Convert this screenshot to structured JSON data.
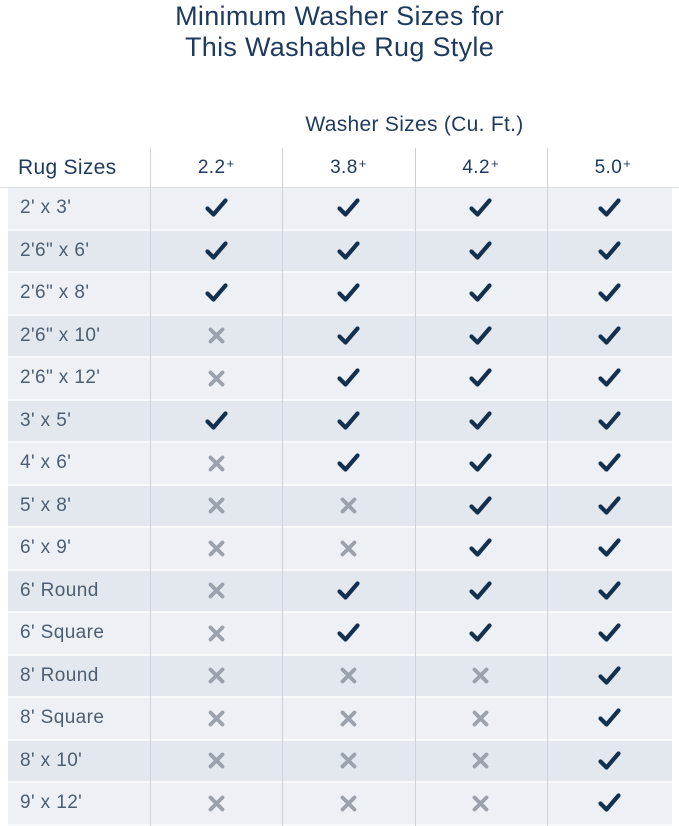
{
  "chart_data": {
    "type": "table",
    "title": "Minimum Washer Sizes for This Washable Rug Style",
    "title_lines": [
      "Minimum Washer Sizes for",
      "This Washable Rug Style"
    ],
    "column_group_label": "Washer Sizes (Cu. Ft.)",
    "row_header": "Rug Sizes",
    "columns": [
      "2.2+",
      "3.8+",
      "4.2+",
      "5.0+"
    ],
    "legend": {
      "check_means": "fits",
      "x_means": "does not fit"
    },
    "rows": [
      {
        "label": "2' x 3'",
        "fits": [
          true,
          true,
          true,
          true
        ]
      },
      {
        "label": "2'6\" x 6'",
        "fits": [
          true,
          true,
          true,
          true
        ]
      },
      {
        "label": "2'6\" x 8'",
        "fits": [
          true,
          true,
          true,
          true
        ]
      },
      {
        "label": "2'6\" x 10'",
        "fits": [
          false,
          true,
          true,
          true
        ]
      },
      {
        "label": "2'6\" x 12'",
        "fits": [
          false,
          true,
          true,
          true
        ]
      },
      {
        "label": "3' x 5'",
        "fits": [
          true,
          true,
          true,
          true
        ]
      },
      {
        "label": "4' x 6'",
        "fits": [
          false,
          true,
          true,
          true
        ]
      },
      {
        "label": "5' x 8'",
        "fits": [
          false,
          false,
          true,
          true
        ]
      },
      {
        "label": "6' x 9'",
        "fits": [
          false,
          false,
          true,
          true
        ]
      },
      {
        "label": "6' Round",
        "fits": [
          false,
          true,
          true,
          true
        ]
      },
      {
        "label": "6' Square",
        "fits": [
          false,
          true,
          true,
          true
        ]
      },
      {
        "label": "8' Round",
        "fits": [
          false,
          false,
          false,
          true
        ]
      },
      {
        "label": "8' Square",
        "fits": [
          false,
          false,
          false,
          true
        ]
      },
      {
        "label": "8' x 10'",
        "fits": [
          false,
          false,
          false,
          true
        ]
      },
      {
        "label": "9' x 12'",
        "fits": [
          false,
          false,
          false,
          true
        ]
      }
    ]
  },
  "icons": {
    "check": "check-icon",
    "x": "x-icon"
  },
  "colors": {
    "title_navy": "#1e3a5e",
    "check_navy": "#13304e",
    "x_gray": "#9ba2ac",
    "row_light": "#edf1f5",
    "row_dark": "#e2e8ed",
    "label_slate": "#4e5e71",
    "divider_gray": "#ccd3da"
  }
}
